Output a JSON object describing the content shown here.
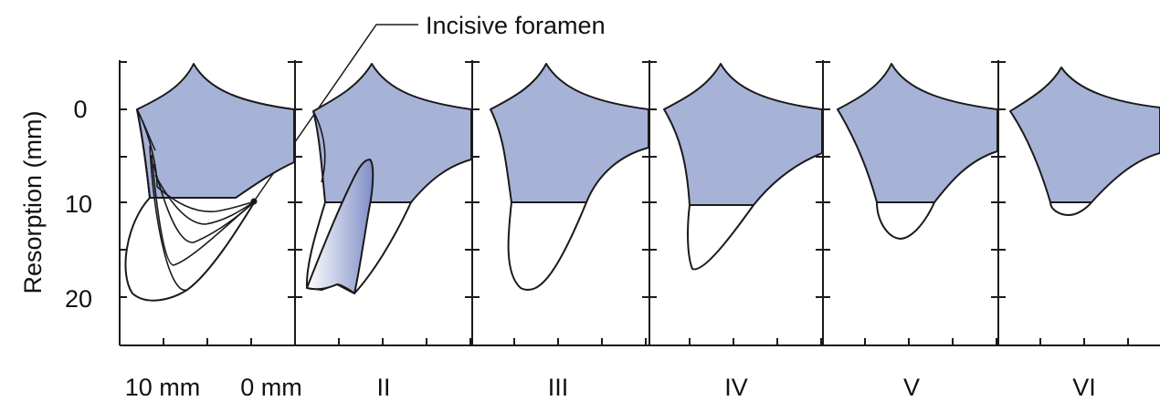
{
  "annotation": "Incisive foramen",
  "y_axis_label": "Resorption (mm)",
  "y_ticks": [
    "0",
    "10",
    "20"
  ],
  "panel_labels": [
    "10 mm",
    "0 mm",
    "II",
    "III",
    "IV",
    "V",
    "VI"
  ],
  "colors": {
    "bone_fill": "#a7b2d7",
    "line": "#1a1a1a",
    "background": "#ffffff"
  }
}
